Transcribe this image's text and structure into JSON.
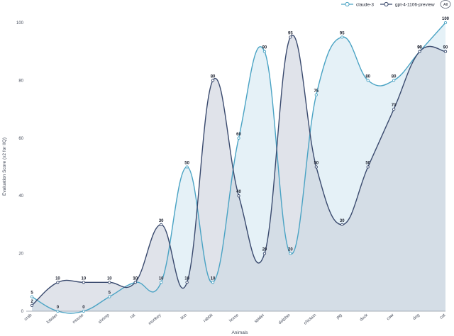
{
  "chart_data": {
    "type": "area",
    "xlabel": "Animals",
    "ylabel": "Evaluation Score (x2 for IIQ)",
    "ylim": [
      0,
      100
    ],
    "yticks": [
      0,
      20,
      40,
      60,
      80,
      100
    ],
    "grid": false,
    "legend_position": "top-right",
    "legend_toggle_label": "All",
    "categories": [
      "crab",
      "lobster",
      "mouse",
      "shrimp",
      "rat",
      "monkey",
      "lion",
      "rabbit",
      "horse",
      "spider",
      "dolphin",
      "chicken",
      "pig",
      "duck",
      "cow",
      "dog",
      "cat"
    ],
    "series": [
      {
        "name": "claude-3",
        "color": "#4aa3c4",
        "fill": "#cfe6f1",
        "values": [
          5,
          0,
          0,
          5,
          10,
          10,
          50,
          10,
          60,
          90,
          20,
          75,
          95,
          80,
          80,
          90,
          100
        ],
        "labels": [
          "5",
          "0",
          "0",
          "5",
          "10",
          "10",
          "50",
          "10",
          "60",
          "90",
          "20",
          "75",
          "95",
          "80",
          "80",
          "90",
          "100"
        ]
      },
      {
        "name": "gpt-4-1106-preview",
        "color": "#3a4a6e",
        "fill": "#c7ccd8",
        "values": [
          2,
          10,
          10,
          10,
          10,
          30,
          10,
          80,
          40,
          20,
          95,
          50,
          30,
          50,
          70,
          90,
          90
        ],
        "labels": [
          "2",
          "10",
          "10",
          "10",
          "10",
          "30",
          "10",
          "80",
          "40",
          "20",
          "95",
          "50",
          "30",
          "50",
          "70",
          "90",
          "90"
        ]
      }
    ]
  }
}
